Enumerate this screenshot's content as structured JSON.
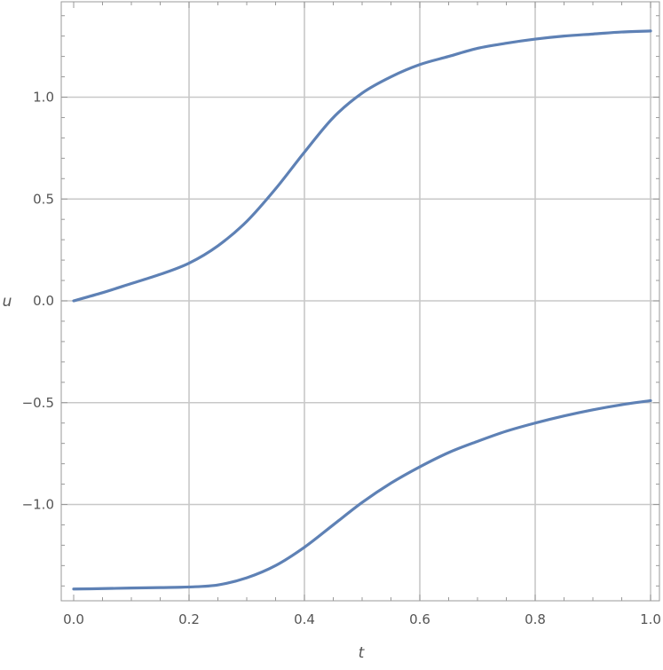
{
  "chart_data": {
    "type": "line",
    "title": "",
    "xlabel": "t",
    "ylabel": "u",
    "xlim": [
      0.0,
      1.0
    ],
    "ylim": [
      -1.45,
      1.48
    ],
    "grid": true,
    "x_ticks": [
      {
        "value": 0.0,
        "label": "0.0"
      },
      {
        "value": 0.2,
        "label": "0.2"
      },
      {
        "value": 0.4,
        "label": "0.4"
      },
      {
        "value": 0.6,
        "label": "0.6"
      },
      {
        "value": 0.8,
        "label": "0.8"
      },
      {
        "value": 1.0,
        "label": "1.0"
      }
    ],
    "y_ticks": [
      {
        "value": 1.0,
        "label": "1.0"
      },
      {
        "value": 0.5,
        "label": "0.5"
      },
      {
        "value": 0.0,
        "label": "0.0"
      },
      {
        "value": -0.5,
        "label": "−0.5"
      },
      {
        "value": -1.0,
        "label": "−1.0"
      }
    ],
    "series": [
      {
        "color": "#5e81b5",
        "x": [
          0.0,
          0.05,
          0.1,
          0.15,
          0.2,
          0.25,
          0.3,
          0.35,
          0.4,
          0.45,
          0.5,
          0.55,
          0.6,
          0.65,
          0.7,
          0.75,
          0.8,
          0.85,
          0.9,
          0.95,
          1.0
        ],
        "y": [
          0.0,
          0.04,
          0.085,
          0.13,
          0.185,
          0.27,
          0.39,
          0.55,
          0.73,
          0.9,
          1.02,
          1.1,
          1.16,
          1.2,
          1.24,
          1.265,
          1.285,
          1.3,
          1.31,
          1.32,
          1.325
        ]
      },
      {
        "color": "#5e81b5",
        "x": [
          0.0,
          0.05,
          0.1,
          0.15,
          0.2,
          0.25,
          0.3,
          0.35,
          0.4,
          0.45,
          0.5,
          0.55,
          0.6,
          0.65,
          0.7,
          0.75,
          0.8,
          0.85,
          0.9,
          0.95,
          1.0
        ],
        "y": [
          -1.415,
          -1.413,
          -1.41,
          -1.408,
          -1.405,
          -1.395,
          -1.36,
          -1.3,
          -1.21,
          -1.1,
          -0.99,
          -0.895,
          -0.815,
          -0.745,
          -0.69,
          -0.64,
          -0.6,
          -0.565,
          -0.535,
          -0.51,
          -0.49
        ]
      }
    ]
  }
}
